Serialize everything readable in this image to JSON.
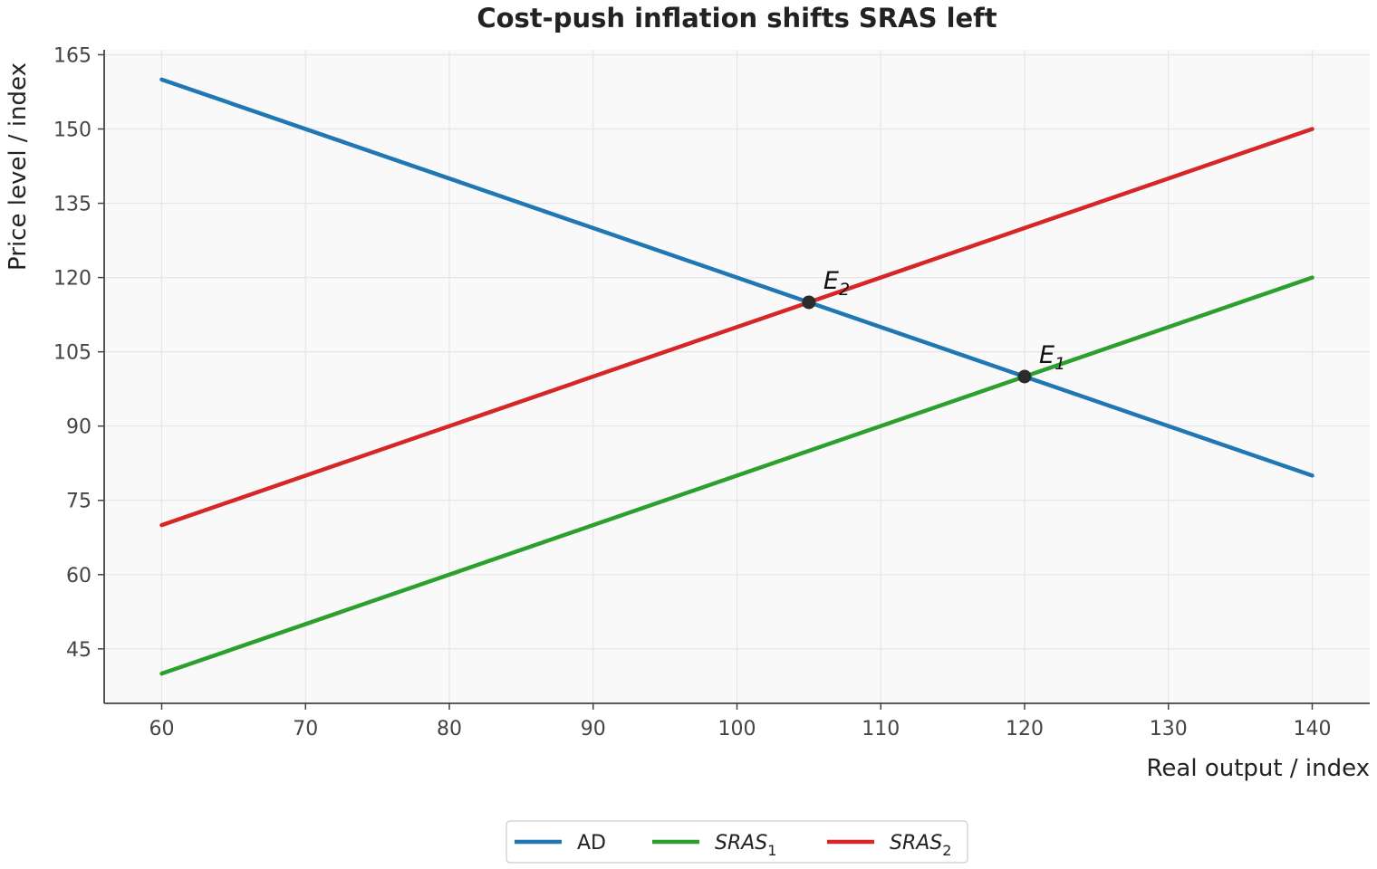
{
  "chart_data": {
    "type": "line",
    "title": "Cost-push inflation shifts SRAS left",
    "xlabel": "Real output / index",
    "ylabel": "Price level / index",
    "xlim": [
      56,
      144
    ],
    "ylim": [
      34,
      166
    ],
    "xticks": [
      60,
      70,
      80,
      90,
      100,
      110,
      120,
      130,
      140
    ],
    "yticks": [
      45,
      60,
      75,
      90,
      105,
      120,
      135,
      150,
      165
    ],
    "grid": true,
    "legend_position": "bottom-center",
    "series": [
      {
        "name": "AD",
        "base": "AD",
        "sub": "",
        "color": "#1f77b4",
        "x": [
          60,
          140
        ],
        "y": [
          160,
          80
        ]
      },
      {
        "name": "SRAS₁",
        "base": "SRAS",
        "sub": "1",
        "color": "#2ca02c",
        "x": [
          60,
          140
        ],
        "y": [
          40,
          120
        ]
      },
      {
        "name": "SRAS₂",
        "base": "SRAS",
        "sub": "2",
        "color": "#d62728",
        "x": [
          60,
          140
        ],
        "y": [
          70,
          150
        ]
      }
    ],
    "points": [
      {
        "label": "E₂",
        "base": "E",
        "sub": "2",
        "x": 105,
        "y": 115
      },
      {
        "label": "E₁",
        "base": "E",
        "sub": "1",
        "x": 120,
        "y": 100
      }
    ]
  }
}
